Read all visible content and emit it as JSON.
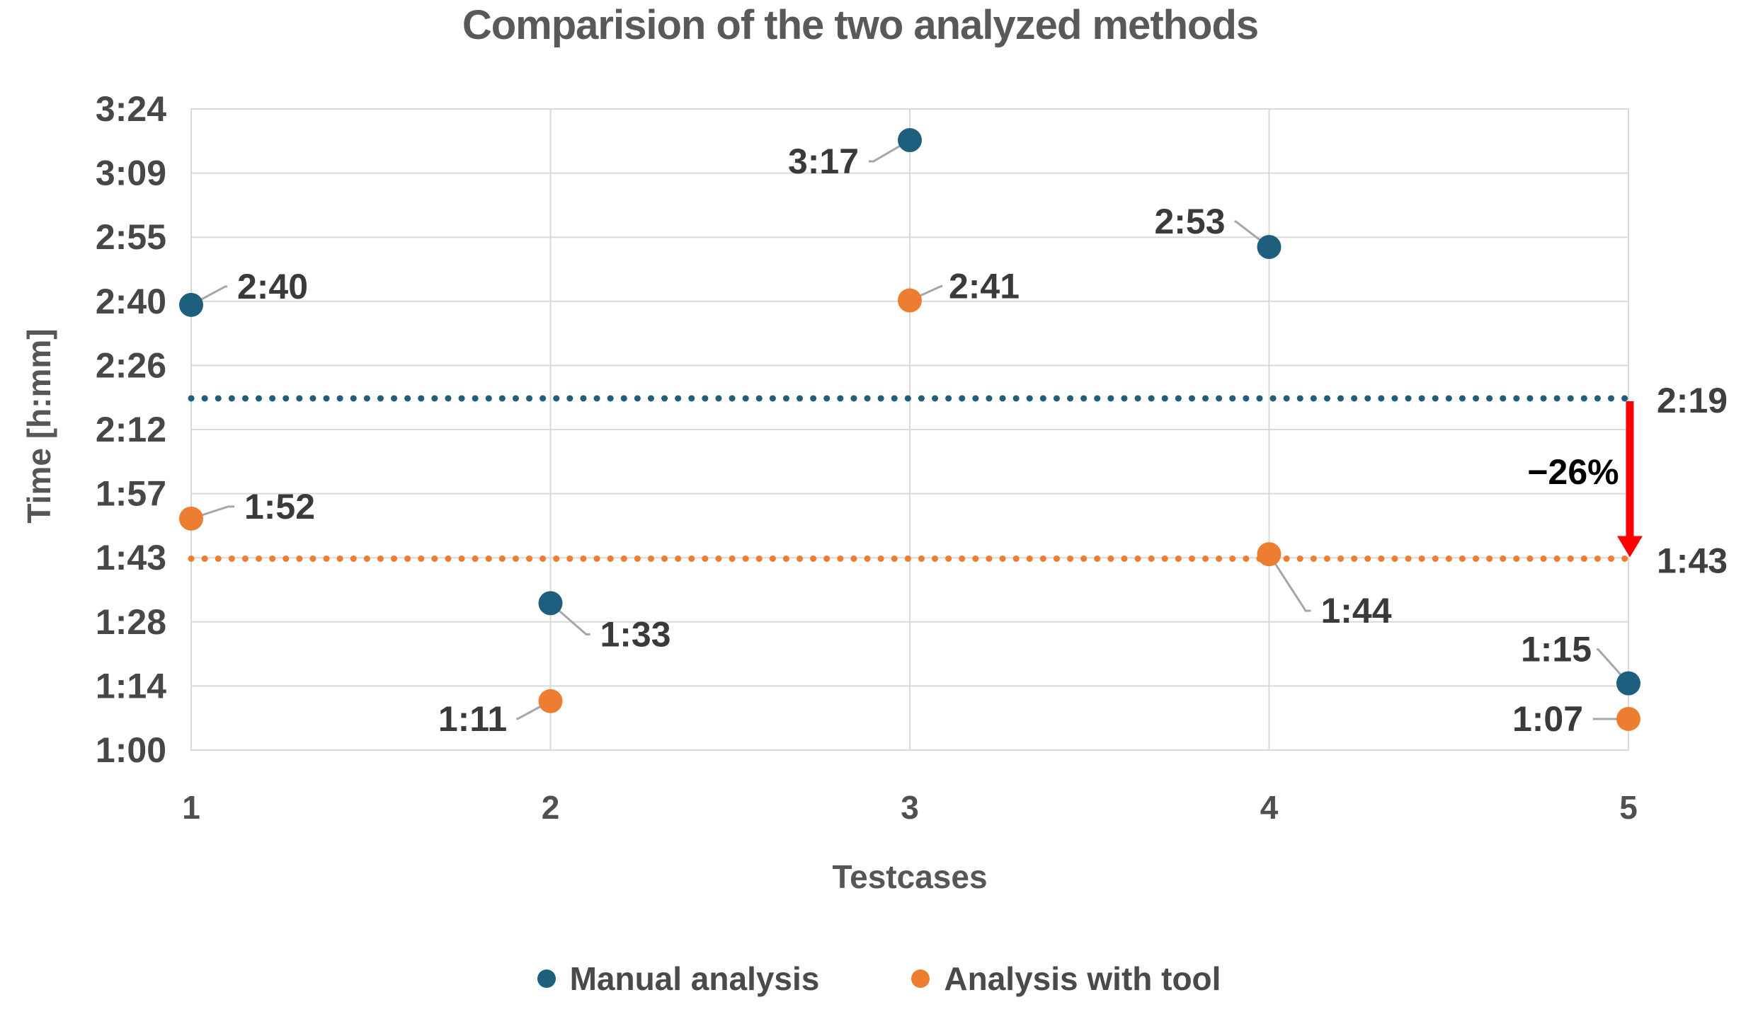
{
  "chart_data": {
    "type": "scatter",
    "title": "Comparision of the two analyzed methods",
    "y_axis": {
      "title": "Time [h:mm]",
      "ticks": [
        "3:24",
        "3:09",
        "2:55",
        "2:40",
        "2:26",
        "2:12",
        "1:57",
        "1:43",
        "1:28",
        "1:14",
        "1:00"
      ],
      "min_minutes": 60,
      "max_minutes": 204,
      "grid": true
    },
    "x_axis": {
      "title": "Testcases",
      "ticks": [
        "1",
        "2",
        "3",
        "4",
        "5"
      ],
      "grid": true
    },
    "series": [
      {
        "name": "Manual analysis",
        "color": "#1E5F7E",
        "mean_label": "2:19",
        "mean_minutes": 139,
        "points": [
          {
            "x": 1,
            "label": "2:40",
            "minutes": 160,
            "dx": 115,
            "dy": -26
          },
          {
            "x": 2,
            "label": "1:33",
            "minutes": 93,
            "dx": 120,
            "dy": 44
          },
          {
            "x": 3,
            "label": "3:17",
            "minutes": 197,
            "dx": -122,
            "dy": 30
          },
          {
            "x": 4,
            "label": "2:53",
            "minutes": 173,
            "dx": -112,
            "dy": -36
          },
          {
            "x": 5,
            "label": "1:15",
            "minutes": 75,
            "dx": -102,
            "dy": -48
          }
        ]
      },
      {
        "name": "Analysis with tool",
        "color": "#ED7D31",
        "mean_label": "1:43",
        "mean_minutes": 103,
        "points": [
          {
            "x": 1,
            "label": "1:52",
            "minutes": 112,
            "dx": 125,
            "dy": -17
          },
          {
            "x": 2,
            "label": "1:11",
            "minutes": 71,
            "dx": -110,
            "dy": 25
          },
          {
            "x": 3,
            "label": "2:41",
            "minutes": 161,
            "dx": 105,
            "dy": -20
          },
          {
            "x": 4,
            "label": "1:44",
            "minutes": 104,
            "dx": 123,
            "dy": 80
          },
          {
            "x": 5,
            "label": "1:07",
            "minutes": 67,
            "dx": -114,
            "dy": 0
          }
        ]
      }
    ],
    "annotation": {
      "label": "−26%",
      "arrow_color": "#FF0000",
      "from_label": "2:19",
      "to_label": "1:43"
    },
    "legend_position": "bottom-center",
    "style": {
      "grid_color": "#D9D9D9",
      "leader_color": "#A6A6A6",
      "title_color": "#595959",
      "label_color": "#3A3A3A"
    }
  }
}
